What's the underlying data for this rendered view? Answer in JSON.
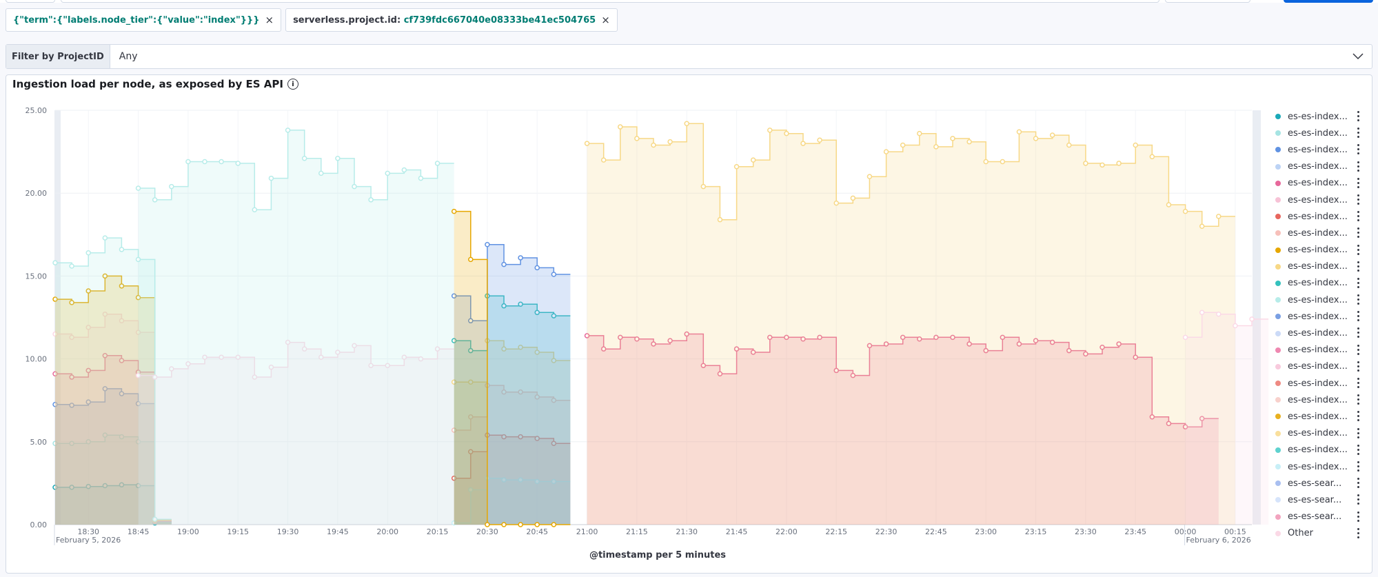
{
  "filters": [
    {
      "key": "{\"term\":{\"labels.node_tier\":{\"value\":\"index\"}}}",
      "value": ""
    },
    {
      "key": "serverless.project.id: ",
      "value": "cf739fdc667040e08333be41ec504765"
    }
  ],
  "control": {
    "label": "Filter by ProjectID",
    "value": "Any"
  },
  "panel": {
    "title": "Ingestion load per node, as exposed by ES API"
  },
  "legend": [
    {
      "label": "es-es-index...",
      "color": "#1ba9b8"
    },
    {
      "label": "es-es-index...",
      "color": "#a6e4e3"
    },
    {
      "label": "es-es-index...",
      "color": "#6092e2"
    },
    {
      "label": "es-es-index...",
      "color": "#bcd3f5"
    },
    {
      "label": "es-es-index...",
      "color": "#e7689b"
    },
    {
      "label": "es-es-index...",
      "color": "#f7c2d6"
    },
    {
      "label": "es-es-index...",
      "color": "#e7665e"
    },
    {
      "label": "es-es-index...",
      "color": "#f7c0ba"
    },
    {
      "label": "es-es-index...",
      "color": "#e6a700"
    },
    {
      "label": "es-es-index...",
      "color": "#f7d886"
    },
    {
      "label": "es-es-index...",
      "color": "#34c1bd"
    },
    {
      "label": "es-es-index...",
      "color": "#b7ece9"
    },
    {
      "label": "es-es-index...",
      "color": "#7a9fe3"
    },
    {
      "label": "es-es-index...",
      "color": "#cbdaf7"
    },
    {
      "label": "es-es-index...",
      "color": "#ef88b1"
    },
    {
      "label": "es-es-index...",
      "color": "#f8cadd"
    },
    {
      "label": "es-es-index...",
      "color": "#ee8a82"
    },
    {
      "label": "es-es-index...",
      "color": "#f8d1cc"
    },
    {
      "label": "es-es-index...",
      "color": "#e8b020"
    },
    {
      "label": "es-es-index...",
      "color": "#f9df9c"
    },
    {
      "label": "es-es-index...",
      "color": "#5fd2cf"
    },
    {
      "label": "es-es-index...",
      "color": "#c7eff7"
    },
    {
      "label": "es-es-sear...",
      "color": "#a9bff0"
    },
    {
      "label": "es-es-sear...",
      "color": "#d6e4fb"
    },
    {
      "label": "es-es-sear...",
      "color": "#f2a4bf"
    },
    {
      "label": "Other",
      "color": "#fbd9e6"
    }
  ],
  "chart_data": {
    "type": "area",
    "step": true,
    "xlabel": "@timestamp per 5 minutes",
    "ylabel": "",
    "ylim": [
      0,
      25
    ],
    "xlim": [
      "18:20",
      "00:20"
    ],
    "y_ticks": [
      "0.00",
      "5.00",
      "10.00",
      "15.00",
      "20.00",
      "25.00"
    ],
    "x_ticks": [
      "18:30",
      "18:45",
      "19:00",
      "19:15",
      "19:30",
      "19:45",
      "20:00",
      "20:15",
      "20:30",
      "20:45",
      "21:00",
      "21:15",
      "21:30",
      "21:45",
      "22:00",
      "22:15",
      "22:30",
      "22:45",
      "23:00",
      "23:15",
      "23:30",
      "23:45",
      "00:00",
      "00:15"
    ],
    "date_labels": [
      {
        "at": "18:20",
        "text": "February 5, 2026"
      },
      {
        "at": "00:00",
        "text": "February 6, 2026"
      }
    ],
    "grid": true,
    "legend_position": "right",
    "series": [
      {
        "color": "#1ba9b8",
        "x_start": "18:20",
        "values": [
          2.25,
          2.25,
          2.3,
          2.35,
          2.4,
          2.35,
          0.1
        ]
      },
      {
        "color": "#a6e4e3",
        "x_start": "18:20",
        "values": [
          4.9,
          4.9,
          5.0,
          5.4,
          5.3,
          5.0,
          0.15
        ]
      },
      {
        "color": "#6092e2",
        "x_start": "18:20",
        "values": [
          7.25,
          7.2,
          7.4,
          8.2,
          7.9,
          7.3,
          0.2
        ]
      },
      {
        "color": "#e7689b",
        "x_start": "18:20",
        "values": [
          9.1,
          8.9,
          9.3,
          10.2,
          9.9,
          9.2,
          0.22
        ]
      },
      {
        "color": "#fbd9e6",
        "x_start": "18:20",
        "values": [
          11.5,
          11.3,
          11.9,
          12.7,
          12.3,
          11.6,
          0.25
        ]
      },
      {
        "color": "#e6a700",
        "x_start": "18:20",
        "values": [
          13.6,
          13.4,
          14.1,
          15.0,
          14.4,
          13.7,
          0.3
        ]
      },
      {
        "color": "#b7ece9",
        "x_start": "18:20",
        "values": [
          15.8,
          15.6,
          16.4,
          17.3,
          16.6,
          16.0,
          0.32
        ]
      },
      {
        "color": "#fbd9e6",
        "x_start": "18:45",
        "values": [
          9.0,
          8.9,
          9.4,
          9.7,
          10.1,
          10.1,
          10.1,
          8.9,
          9.5,
          11.0,
          10.6,
          10.1,
          10.4,
          10.8,
          9.6,
          9.6,
          10.1,
          10.0,
          10.6
        ]
      },
      {
        "color": "#b7ece9",
        "x_start": "18:45",
        "values": [
          20.3,
          19.6,
          20.4,
          21.9,
          21.9,
          21.9,
          21.8,
          19.0,
          20.9,
          23.8,
          22.1,
          21.2,
          22.1,
          20.4,
          19.6,
          21.2,
          21.4,
          20.9,
          21.8
        ]
      },
      {
        "color": "#e7665e",
        "x_start": "20:20",
        "values": [
          2.8,
          4.4,
          5.4,
          5.3,
          5.3,
          5.2,
          4.9
        ]
      },
      {
        "color": "#c7eff7",
        "x_start": "20:20",
        "values": [
          0.1,
          2.1,
          2.8,
          2.7,
          2.7,
          2.6,
          2.6
        ]
      },
      {
        "color": "#f7c0ba",
        "x_start": "20:20",
        "values": [
          5.7,
          6.5,
          8.4,
          8.0,
          8.0,
          7.7,
          7.5
        ]
      },
      {
        "color": "#f7d886",
        "x_start": "20:20",
        "values": [
          8.6,
          8.6,
          11.1,
          10.6,
          10.7,
          10.4,
          9.9
        ]
      },
      {
        "color": "#34c1bd",
        "x_start": "20:20",
        "values": [
          11.1,
          10.5,
          13.8,
          13.2,
          13.3,
          12.8,
          12.6
        ]
      },
      {
        "color": "#6092e2",
        "x_start": "20:20",
        "values": [
          13.8,
          12.3,
          16.9,
          15.7,
          16.1,
          15.5,
          15.1
        ]
      },
      {
        "color": "#e6a700",
        "x_start": "20:20",
        "values": [
          18.9,
          16.0,
          0,
          0,
          0,
          0,
          0
        ]
      },
      {
        "color": "#e7689b",
        "x_start": "21:00",
        "values": [
          11.4,
          10.6,
          11.3,
          11.2,
          10.9,
          11.1,
          11.5,
          9.6,
          9.1,
          10.6,
          10.4,
          11.3,
          11.3,
          11.2,
          11.3,
          9.3,
          9.0,
          10.8,
          10.9,
          11.3,
          11.2,
          11.3,
          11.3,
          10.9,
          10.5,
          11.3,
          10.9,
          11.1,
          11.0,
          10.5,
          10.3,
          10.7,
          10.9,
          10.1,
          6.5,
          6.1,
          5.9,
          6.4
        ]
      },
      {
        "color": "#f7d886",
        "x_start": "21:00",
        "values": [
          23.0,
          22.0,
          24.0,
          23.3,
          22.9,
          23.1,
          24.2,
          20.4,
          18.4,
          21.6,
          22.0,
          23.8,
          23.6,
          23.0,
          23.2,
          19.4,
          19.7,
          21.0,
          22.5,
          22.9,
          23.6,
          22.8,
          23.3,
          23.1,
          21.9,
          21.9,
          23.7,
          23.3,
          23.5,
          22.9,
          21.8,
          21.7,
          21.8,
          22.9,
          22.2,
          19.3,
          18.9,
          18.0,
          18.6
        ]
      },
      {
        "color": "#fbd9e6",
        "x_start": "00:00",
        "values": [
          11.3,
          12.8,
          12.7,
          12.0,
          12.4
        ]
      }
    ]
  }
}
